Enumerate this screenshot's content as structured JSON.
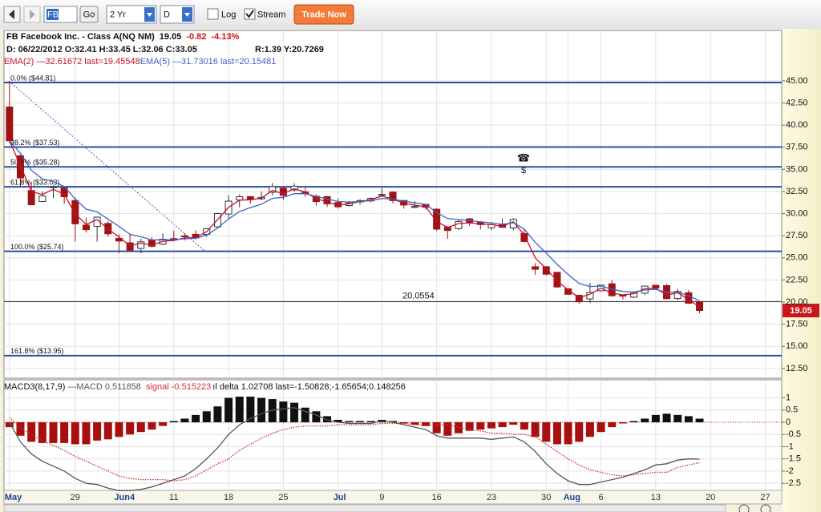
{
  "toolbar": {
    "symbol": "FB",
    "go": "Go",
    "period": "2 Yr",
    "interval": "D",
    "log": "Log",
    "log_checked": false,
    "stream": "Stream",
    "stream_checked": true,
    "trade": "Trade Now"
  },
  "chart_data": [
    {
      "type": "candlestick",
      "title": "FB Facebook Inc. - Class A(NQ NM)",
      "last_price": 19.05,
      "change": -0.82,
      "change_pct": "-4.13%",
      "bar_info": "D: 06/22/2012 O:32.41 H:33.45 L:32.06 C:33.05",
      "cursor_info": "R:1.39 Y:20.7269",
      "categories": [
        "May",
        null,
        null,
        null,
        null,
        null,
        "29",
        null,
        null,
        null,
        "Jun4",
        null,
        null,
        null,
        null,
        "11",
        null,
        null,
        null,
        null,
        "18",
        null,
        null,
        null,
        null,
        "25",
        null,
        null,
        null,
        null,
        "Jul",
        null,
        null,
        null,
        "9",
        null,
        null,
        null,
        null,
        "16",
        null,
        null,
        null,
        null,
        "23",
        null,
        null,
        null,
        null,
        "30",
        null,
        "Aug",
        null,
        null,
        "6",
        null,
        null,
        null,
        null,
        "13",
        null,
        null,
        null,
        null,
        "20",
        null,
        null,
        null,
        null,
        "27",
        null
      ],
      "open": [
        42.05,
        36.53,
        32.61,
        31.37,
        32.95,
        32.9,
        31.48,
        28.7,
        28.55,
        28.89,
        27.2,
        26.7,
        26.07,
        27.0,
        26.55,
        27.18,
        27.48,
        27.66,
        27.65,
        28.51,
        29.96,
        31.54,
        31.92,
        31.67,
        32.41,
        32.86,
        32.69,
        32.46,
        31.96,
        31.92,
        31.25,
        30.91,
        31.32,
        31.44,
        32.1,
        32.43,
        31.48,
        30.7,
        31.04,
        30.5,
        28.48,
        28.31,
        29.41,
        29.05,
        28.4,
        28.82,
        28.38,
        27.75,
        23.99,
        24.0,
        23.37,
        21.5,
        20.77,
        20.36,
        21.28,
        22.07,
        20.77,
        20.56,
        21.01,
        21.9,
        21.86,
        20.4,
        21.06,
        20.01,
        null,
        null,
        null,
        null,
        null,
        null,
        null
      ],
      "high": [
        45.0,
        36.66,
        33.59,
        32.5,
        33.21,
        32.95,
        31.8,
        29.55,
        29.67,
        29.15,
        27.65,
        27.76,
        27.17,
        27.35,
        27.76,
        28.07,
        27.77,
        28.1,
        28.32,
        30.1,
        32.08,
        32.18,
        31.93,
        32.5,
        33.45,
        33.02,
        33.44,
        32.9,
        32.19,
        31.99,
        31.73,
        31.44,
        31.63,
        31.83,
        32.88,
        32.48,
        31.56,
        31.4,
        31.05,
        30.6,
        28.59,
        29.29,
        29.5,
        29.16,
        28.98,
        29.47,
        29.49,
        28.23,
        24.4,
        24.04,
        23.37,
        21.58,
        20.84,
        22.16,
        21.95,
        22.5,
        20.84,
        21.19,
        21.82,
        21.95,
        22.05,
        21.49,
        21.35,
        20.07,
        null,
        null,
        null,
        null,
        null,
        null,
        null
      ],
      "low": [
        38.0,
        33.0,
        30.94,
        31.36,
        31.77,
        31.11,
        26.83,
        27.86,
        26.83,
        27.39,
        25.52,
        25.75,
        25.52,
        26.15,
        26.44,
        26.84,
        26.96,
        27.1,
        27.38,
        28.35,
        29.41,
        30.7,
        31.15,
        31.51,
        32.06,
        31.55,
        32.5,
        31.9,
        30.9,
        30.76,
        30.55,
        30.8,
        31.02,
        31.26,
        31.99,
        31.16,
        30.55,
        30.6,
        30.44,
        28.06,
        27.15,
        28.15,
        28.63,
        28.21,
        28.12,
        28.4,
        28.1,
        26.73,
        23.08,
        23.03,
        21.61,
        20.84,
        19.82,
        19.9,
        21.19,
        20.6,
        20.31,
        20.44,
        20.81,
        21.47,
        20.3,
        20.24,
        19.8,
        18.75,
        null,
        null,
        null,
        null,
        null,
        null,
        null
      ],
      "close": [
        38.23,
        34.03,
        31.0,
        32.0,
        33.03,
        31.91,
        28.84,
        28.19,
        29.6,
        27.72,
        26.9,
        25.87,
        26.81,
        26.31,
        27.1,
        27.01,
        27.4,
        27.27,
        28.29,
        30.01,
        31.41,
        31.91,
        31.6,
        31.84,
        33.05,
        32.06,
        33.1,
        32.23,
        31.36,
        31.1,
        30.77,
        31.2,
        31.47,
        31.73,
        32.17,
        31.47,
        30.97,
        30.81,
        30.72,
        28.25,
        28.09,
        29.11,
        29.0,
        28.76,
        28.75,
        28.45,
        29.34,
        26.85,
        23.71,
        23.15,
        21.71,
        20.88,
        20.04,
        21.09,
        21.92,
        20.72,
        20.72,
        21.01,
        21.81,
        21.6,
        20.38,
        21.2,
        19.87,
        19.05,
        null,
        null,
        null,
        null,
        null,
        null,
        null
      ],
      "up_color": "#ffffff",
      "down_color": "#9e1414",
      "series": [
        {
          "name": "EMA(2) —32.61672 last=19.45548",
          "color": "#c8102e",
          "values": [
            38.23,
            35.43,
            32.48,
            32.16,
            32.74,
            32.19,
            29.96,
            28.78,
            29.33,
            28.26,
            27.35,
            26.36,
            26.66,
            26.43,
            26.88,
            26.97,
            27.26,
            27.27,
            27.95,
            29.32,
            30.71,
            31.51,
            31.57,
            31.75,
            32.62,
            32.25,
            32.82,
            32.43,
            31.72,
            31.31,
            30.95,
            31.12,
            31.35,
            31.6,
            31.98,
            31.64,
            31.19,
            30.94,
            30.79,
            29.1,
            28.43,
            28.88,
            28.96,
            28.83,
            28.78,
            28.56,
            29.08,
            27.59,
            25.0,
            23.77,
            22.4,
            21.39,
            20.49,
            20.89,
            21.58,
            21.01,
            20.82,
            20.95,
            21.52,
            21.57,
            20.78,
            21.06,
            20.27,
            19.46,
            null,
            null,
            null,
            null,
            null,
            null,
            null
          ]
        },
        {
          "name": "EMA(5) —31.73016 last=20.15481",
          "color": "#3d63c9",
          "values": [
            38.23,
            36.83,
            34.89,
            33.93,
            33.63,
            33.06,
            31.65,
            30.5,
            30.2,
            29.37,
            28.55,
            27.66,
            27.38,
            27.02,
            27.05,
            27.04,
            27.16,
            27.2,
            27.56,
            28.38,
            29.39,
            30.23,
            30.69,
            31.07,
            31.73,
            31.84,
            32.26,
            32.25,
            31.95,
            31.67,
            31.37,
            31.31,
            31.36,
            31.48,
            31.71,
            31.63,
            31.41,
            31.21,
            31.05,
            30.12,
            29.44,
            29.33,
            29.22,
            29.07,
            28.96,
            28.79,
            28.97,
            28.26,
            26.74,
            25.54,
            24.26,
            23.13,
            22.1,
            21.76,
            21.81,
            21.45,
            21.21,
            21.14,
            21.36,
            21.44,
            21.09,
            21.13,
            20.71,
            20.16,
            null,
            null,
            null,
            null,
            null,
            null,
            null
          ]
        }
      ],
      "fib_levels": [
        {
          "value": 44.81,
          "label": "0.0%  ($44.81)"
        },
        {
          "value": 37.53,
          "label": "38.2%  ($37.53)"
        },
        {
          "value": 35.28,
          "label": "50.0%  ($35.28)"
        },
        {
          "value": 33.03,
          "label": "61.8%  ($33.03)"
        },
        {
          "value": 25.74,
          "label": "100.0%  ($25.74)"
        },
        {
          "value": 13.95,
          "label": "161.8%  ($13.95)"
        }
      ],
      "fib_color": "#2b4f9e",
      "hline": 20.0554,
      "event": {
        "icon": "☎",
        "label": "$"
      },
      "ylim": [
        11.4,
        50.7
      ],
      "yticks": [
        {
          "value": 12.5,
          "label": "12.50"
        },
        {
          "value": 15,
          "label": "15.00"
        },
        {
          "value": 17.5,
          "label": "17.50"
        },
        {
          "value": 20,
          "label": "20.00"
        },
        {
          "value": 22.5,
          "label": "22.50"
        },
        {
          "value": 25,
          "label": "25.00"
        },
        {
          "value": 27.5,
          "label": "27.50"
        },
        {
          "value": 30,
          "label": "30.00"
        },
        {
          "value": 32.5,
          "label": "32.50"
        },
        {
          "value": 35,
          "label": "35.00"
        },
        {
          "value": 37.5,
          "label": "37.50"
        },
        {
          "value": 40,
          "label": "40.00"
        },
        {
          "value": 42.5,
          "label": "42.50"
        },
        {
          "value": 45,
          "label": "45.00"
        }
      ],
      "grid": true
    },
    {
      "type": "macd",
      "title": "MACD3(8,17,9)",
      "histogram_label": "ıl delta 1.02708",
      "last_label": "last=-1.50828;-1.65654;0.148256",
      "values": [
        -0.2,
        -0.55,
        -0.8,
        -0.85,
        -0.85,
        -0.85,
        -0.9,
        -0.9,
        -0.75,
        -0.7,
        -0.6,
        -0.5,
        -0.4,
        -0.3,
        -0.15,
        0.05,
        0.15,
        0.3,
        0.45,
        0.65,
        1.0,
        1.05,
        1.05,
        1.0,
        0.95,
        0.85,
        0.8,
        0.6,
        0.45,
        0.25,
        0.1,
        0.05,
        0.05,
        0.05,
        0.1,
        0.05,
        -0.05,
        -0.1,
        -0.15,
        -0.45,
        -0.55,
        -0.45,
        -0.35,
        -0.3,
        -0.25,
        -0.2,
        -0.1,
        -0.3,
        -0.6,
        -0.8,
        -0.9,
        -0.9,
        -0.8,
        -0.6,
        -0.4,
        -0.2,
        -0.05,
        0.05,
        0.15,
        0.3,
        0.35,
        0.3,
        0.25,
        0.148256,
        null,
        null,
        null,
        null,
        null,
        null,
        null
      ],
      "pos_color": "#111111",
      "neg_color": "#a80f0f",
      "series": [
        {
          "name": "—MACD 0.511858",
          "color": "#555555",
          "values": [
            0,
            -0.8,
            -1.3,
            -1.6,
            -1.8,
            -2.0,
            -2.3,
            -2.5,
            -2.55,
            -2.7,
            -2.8,
            -2.8,
            -2.75,
            -2.65,
            -2.5,
            -2.35,
            -2.2,
            -1.9,
            -1.5,
            -1.05,
            -0.5,
            -0.1,
            0.15,
            0.35,
            0.5,
            0.55,
            0.6,
            0.45,
            0.3,
            0.1,
            0.0,
            -0.05,
            -0.05,
            -0.05,
            0.05,
            0.0,
            -0.1,
            -0.2,
            -0.3,
            -0.55,
            -0.65,
            -0.65,
            -0.65,
            -0.65,
            -0.7,
            -0.65,
            -0.6,
            -0.8,
            -1.2,
            -1.7,
            -2.1,
            -2.4,
            -2.55,
            -2.55,
            -2.45,
            -2.35,
            -2.25,
            -2.1,
            -1.95,
            -1.75,
            -1.7,
            -1.55,
            -1.5,
            -1.50828,
            null,
            null,
            null,
            null,
            null,
            null,
            null
          ]
        },
        {
          "name": "signal -0.515223",
          "color": "#d0302a",
          "dashed": true,
          "values": [
            0.2,
            -0.25,
            -0.5,
            -0.75,
            -0.95,
            -1.15,
            -1.4,
            -1.6,
            -1.8,
            -2.0,
            -2.2,
            -2.3,
            -2.35,
            -2.35,
            -2.35,
            -2.4,
            -2.35,
            -2.2,
            -1.95,
            -1.7,
            -1.5,
            -1.15,
            -0.9,
            -0.65,
            -0.45,
            -0.3,
            -0.2,
            -0.15,
            -0.15,
            -0.15,
            -0.1,
            -0.1,
            -0.1,
            -0.1,
            -0.05,
            -0.05,
            -0.05,
            -0.1,
            -0.15,
            -0.1,
            -0.1,
            -0.2,
            -0.3,
            -0.35,
            -0.45,
            -0.45,
            -0.5,
            -0.5,
            -0.6,
            -0.9,
            -1.2,
            -1.5,
            -1.75,
            -1.95,
            -2.05,
            -2.15,
            -2.2,
            -2.15,
            -2.1,
            -2.05,
            -2.05,
            -1.85,
            -1.75,
            -1.65654,
            null,
            null,
            null,
            null,
            null,
            null,
            null
          ]
        }
      ],
      "ylim": [
        -2.79,
        1.74
      ],
      "yticks": [
        1,
        0.5,
        0,
        -0.5,
        -1,
        -1.5,
        -2,
        -2.5
      ],
      "grid": true
    }
  ]
}
